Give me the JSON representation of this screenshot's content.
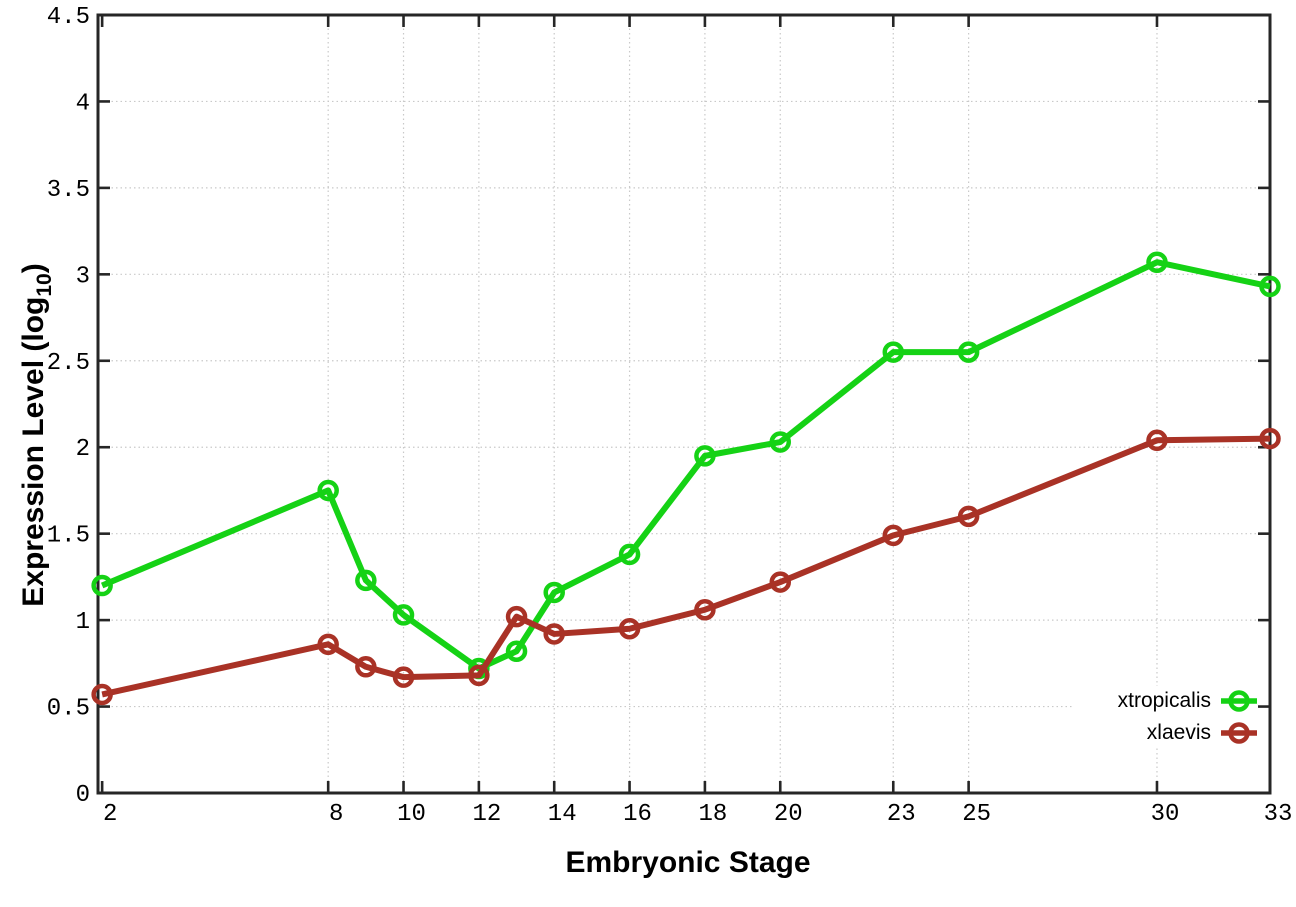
{
  "chart_data": {
    "type": "line",
    "title": "",
    "xlabel": "Embryonic Stage",
    "ylabel": "Expression Level (log10)",
    "ylabel_parts": {
      "prefix": "Expression Level (log",
      "subscript": "10",
      "suffix": ")"
    },
    "xlim": [
      1.89,
      33
    ],
    "ylim": [
      0,
      4.5
    ],
    "grid": true,
    "grid_style": "dotted",
    "legend_position": "inside bottom-right",
    "x_ticks": [
      2,
      8,
      10,
      12,
      14,
      16,
      18,
      20,
      23,
      25,
      30,
      33
    ],
    "x_tick_labels": [
      "2",
      "8",
      "10",
      "12",
      "14",
      "16",
      "18",
      "20",
      "23",
      "25",
      "30",
      "33"
    ],
    "y_ticks": [
      0,
      0.5,
      1,
      1.5,
      2,
      2.5,
      3,
      3.5,
      4,
      4.5
    ],
    "y_tick_labels": [
      "0",
      "0.5",
      "1",
      "1.5",
      "2",
      "2.5",
      "3",
      "3.5",
      "4",
      "4.5"
    ],
    "x": [
      2,
      8,
      9,
      10,
      12,
      13,
      14,
      16,
      18,
      20,
      23,
      25,
      30,
      33
    ],
    "series": [
      {
        "name": "xtropicalis",
        "color": "#15D215",
        "marker": "open-circle",
        "values": [
          1.2,
          1.75,
          1.23,
          1.03,
          0.72,
          0.82,
          1.16,
          1.38,
          1.95,
          2.03,
          2.55,
          2.55,
          3.07,
          2.93
        ]
      },
      {
        "name": "xlaevis",
        "color": "#A93226",
        "marker": "open-circle",
        "values": [
          0.57,
          0.86,
          0.73,
          0.67,
          0.68,
          1.02,
          0.92,
          0.95,
          1.06,
          1.22,
          1.49,
          1.6,
          2.04,
          2.05
        ]
      }
    ]
  },
  "styles": {
    "background": "#ffffff",
    "grid_color": "#c9c9c9",
    "axis_color": "#262626",
    "text_color": "#000000"
  }
}
